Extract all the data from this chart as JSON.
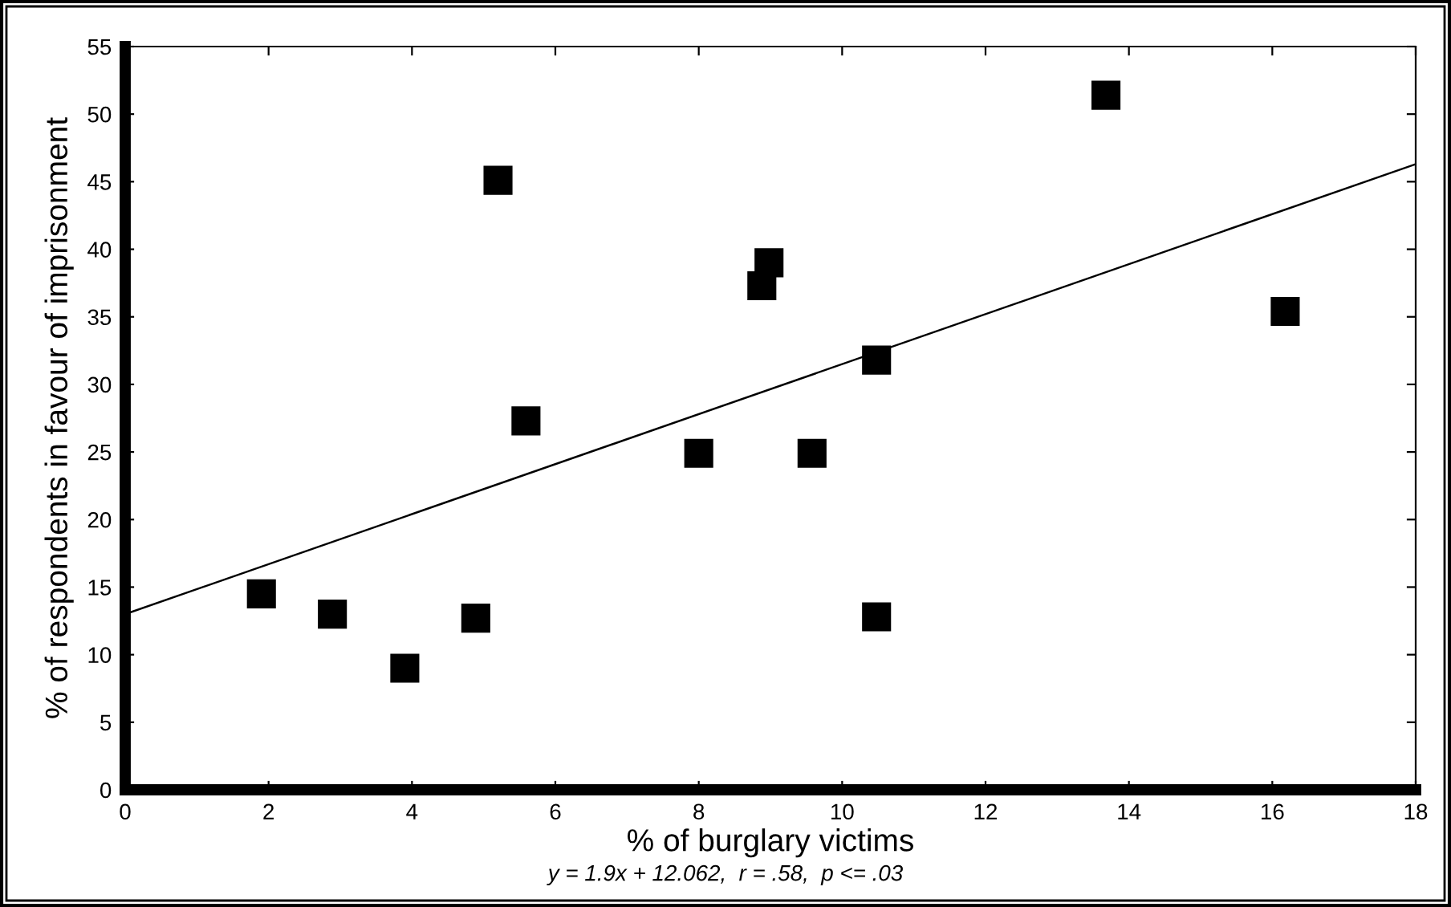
{
  "chart_data": {
    "type": "scatter",
    "xlabel": "% of burglary victims",
    "ylabel": "% of respondents in favour of imprisonment",
    "annotations": [
      "y = 1.9x + 12.062,  r = .58,  p <= .03"
    ],
    "xlim": [
      0,
      18
    ],
    "xticks": [
      0,
      2,
      4,
      6,
      8,
      10,
      12,
      14,
      16,
      18
    ],
    "ylim": [
      0,
      55
    ],
    "yticks": [
      0,
      5,
      10,
      15,
      20,
      25,
      30,
      35,
      40,
      45,
      50,
      55
    ],
    "grid": false,
    "legend": false,
    "marker": "square",
    "series": [
      {
        "color": "#000000",
        "x": [
          1.9,
          2.89,
          3.9,
          4.89,
          5.2,
          5.59,
          8.0,
          8.88,
          8.98,
          10.48,
          9.58,
          10.48,
          13.68,
          16.18
        ],
        "values": [
          14.5,
          13.0,
          9.0,
          12.7,
          45.1,
          27.3,
          24.9,
          37.3,
          39.0,
          31.8,
          24.9,
          12.8,
          51.4,
          35.4
        ]
      },
      {
        "type": "line",
        "color": "#000000",
        "line_style": "solid",
        "marker": "none",
        "x": [
          0,
          18
        ],
        "values": [
          13.0,
          46.3
        ]
      }
    ]
  }
}
